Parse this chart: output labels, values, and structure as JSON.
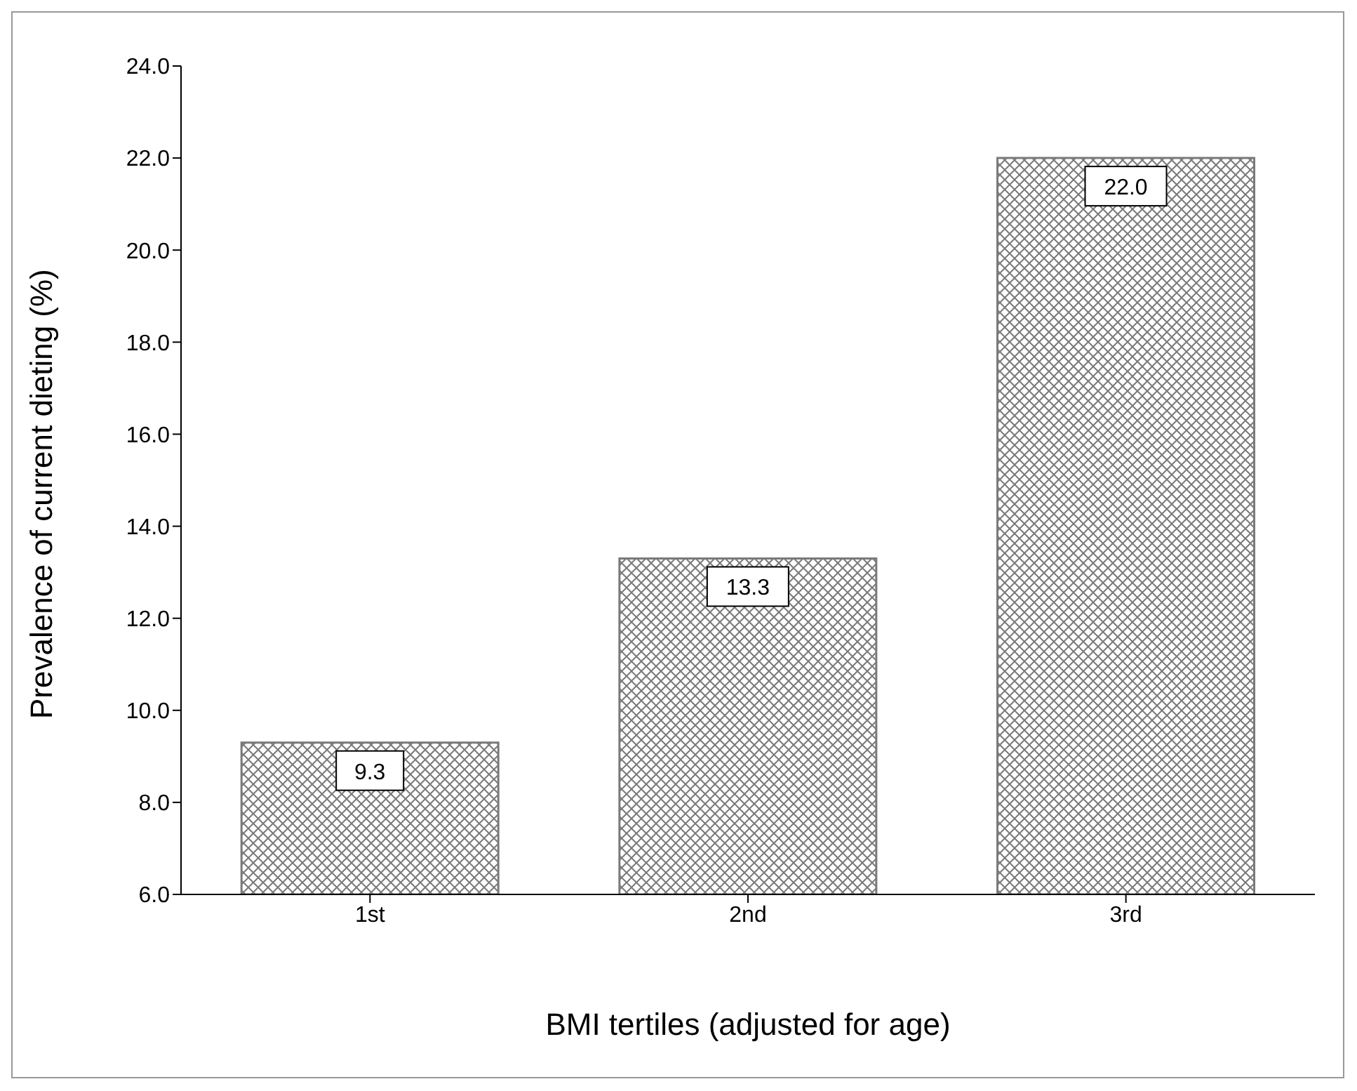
{
  "chart_data": {
    "type": "bar",
    "xlabel": "BMI tertiles (adjusted for age)",
    "ylabel": "Prevalence of current dieting (%)",
    "categories": [
      "1st",
      "2nd",
      "3rd"
    ],
    "values": [
      9.3,
      13.3,
      22.0
    ],
    "value_labels": [
      "9.3",
      "13.3",
      "22.0"
    ],
    "color": "#7a7a7a",
    "ylim": [
      6,
      24
    ],
    "yticks": [
      {
        "value": 6,
        "label": "6.0"
      },
      {
        "value": 8,
        "label": "8.0"
      },
      {
        "value": 10,
        "label": "10.0"
      },
      {
        "value": 12,
        "label": "12.0"
      },
      {
        "value": 14,
        "label": "14.0"
      },
      {
        "value": 16,
        "label": "16.0"
      },
      {
        "value": 18,
        "label": "18.0"
      },
      {
        "value": 20,
        "label": "20.0"
      },
      {
        "value": 22,
        "label": "22.0"
      },
      {
        "value": 24,
        "label": "24.0"
      }
    ],
    "grid": false,
    "legend": false
  }
}
